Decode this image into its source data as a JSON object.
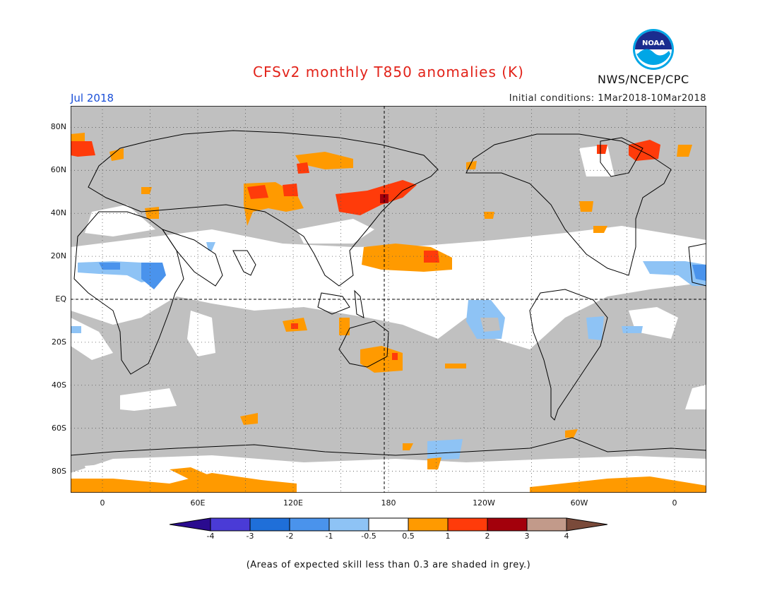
{
  "header": {
    "title": "CFSv2 monthly T850 anomalies (K)",
    "month": "Jul 2018",
    "initial_conditions": "Initial conditions: 1Mar2018-10Mar2018",
    "agency": "NWS/NCEP/CPC",
    "logo_text": "NOAA"
  },
  "map": {
    "lat_labels": [
      "80N",
      "60N",
      "40N",
      "20N",
      "EQ",
      "20S",
      "40S",
      "60S",
      "80S"
    ],
    "lon_labels": [
      "0",
      "60E",
      "120E",
      "180",
      "120W",
      "60W",
      "0"
    ],
    "lon_range": [
      -20,
      380
    ],
    "lat_range": [
      -90,
      90
    ],
    "grid": "dotted",
    "anomaly_regions": [
      {
        "name": "north-pacific-warm",
        "class": "1-2",
        "lon": [
          155,
          208
        ],
        "lat": [
          36,
          52
        ]
      },
      {
        "name": "north-pacific-core",
        "class": "2-3",
        "lon": [
          178,
          182
        ],
        "lat": [
          45,
          49
        ]
      },
      {
        "name": "central-pacific-warm",
        "class": "0.5-1",
        "lon": [
          165,
          205
        ],
        "lat": [
          14,
          25
        ]
      },
      {
        "name": "east-asia-warm",
        "class": "0.5-1",
        "lon": [
          90,
          130
        ],
        "lat": [
          35,
          52
        ]
      },
      {
        "name": "west-africa-cool",
        "class": "-1--0.5",
        "lon": [
          -20,
          35
        ],
        "lat": [
          8,
          18
        ]
      },
      {
        "name": "east-pacific-cool",
        "class": "-1--0.5",
        "lon": [
          225,
          245
        ],
        "lat": [
          -22,
          -5
        ]
      },
      {
        "name": "south-pacific-warm",
        "class": "0.5-1",
        "lon": [
          170,
          220
        ],
        "lat": [
          -36,
          -24
        ]
      },
      {
        "name": "southern-ocean-cool",
        "class": "-1--0.5",
        "lon": [
          215,
          235
        ],
        "lat": [
          -75,
          -64
        ]
      },
      {
        "name": "greenland-warm",
        "class": "1-2",
        "lon": [
          300,
          345
        ],
        "lat": [
          60,
          72
        ]
      },
      {
        "name": "antarctic-warm",
        "class": "0.5-1",
        "lon": [
          -20,
          100
        ],
        "lat": [
          -90,
          -84
        ]
      }
    ]
  },
  "colorbar": {
    "colors": [
      "#2a0b8f",
      "#4a3bd6",
      "#1f6fd9",
      "#4a93ec",
      "#8ec3f5",
      "#ffffff",
      "#ff9a00",
      "#ff3b0a",
      "#a3000b",
      "#c29a8a",
      "#7a4a3a"
    ],
    "tick_labels": [
      "-4",
      "-3",
      "-2",
      "-1",
      "-0.5",
      "0.5",
      "1",
      "2",
      "3",
      "4"
    ]
  },
  "footnote": "(Areas of expected skill less than 0.3 are shaded in grey.)"
}
